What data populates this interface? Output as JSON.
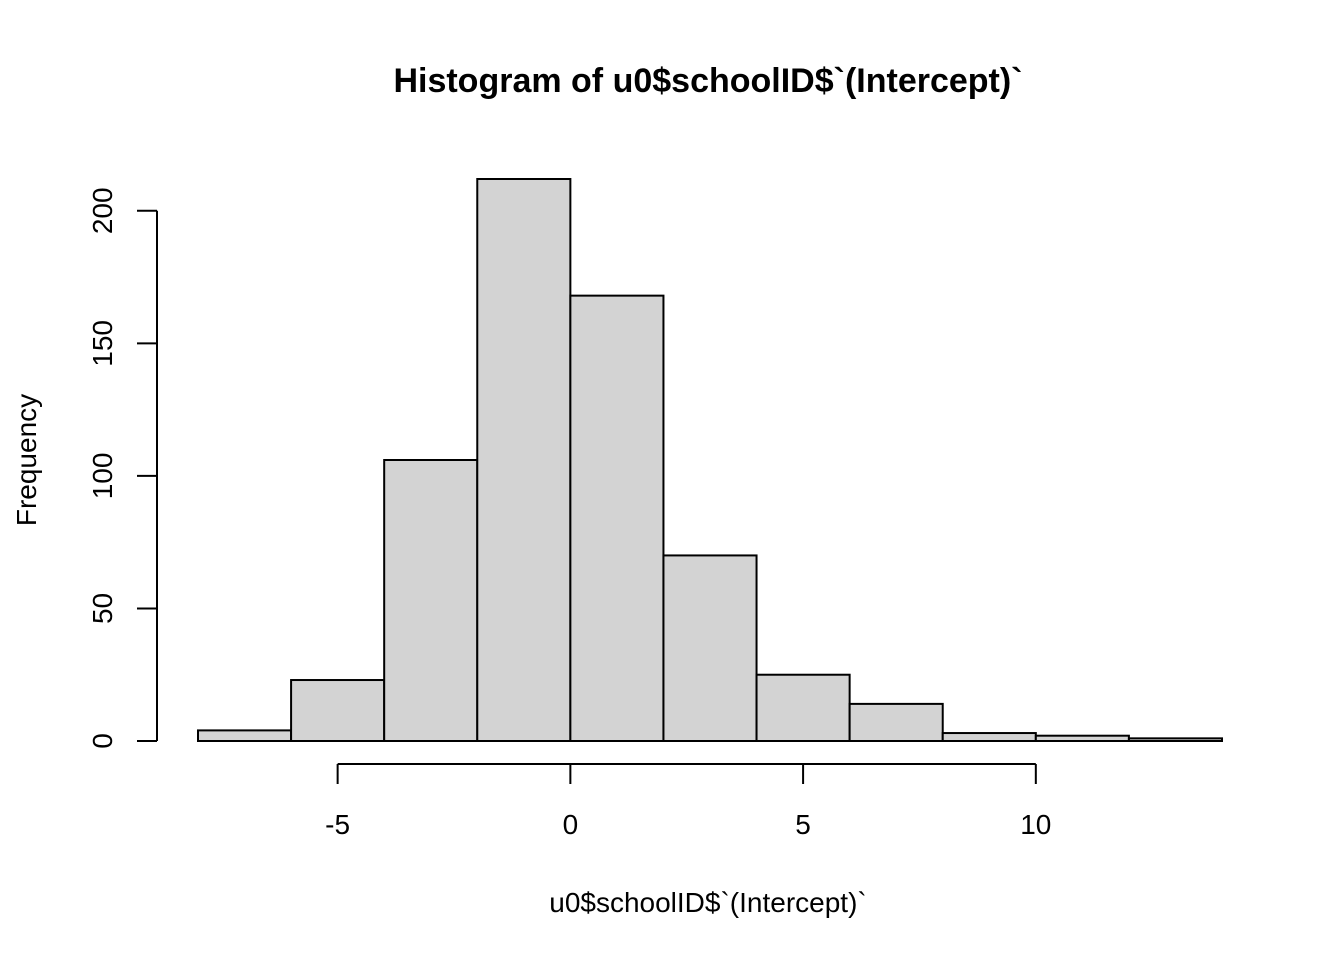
{
  "chart_data": {
    "type": "bar",
    "subtype": "histogram",
    "title": "Histogram of u0$schoolID$`(Intercept)`",
    "xlabel": "u0$schoolID$`(Intercept)`",
    "ylabel": "Frequency",
    "bins": [
      {
        "x0": -8,
        "x1": -6,
        "count": 4
      },
      {
        "x0": -6,
        "x1": -4,
        "count": 23
      },
      {
        "x0": -4,
        "x1": -2,
        "count": 106
      },
      {
        "x0": -2,
        "x1": 0,
        "count": 212
      },
      {
        "x0": 0,
        "x1": 2,
        "count": 168
      },
      {
        "x0": 2,
        "x1": 4,
        "count": 70
      },
      {
        "x0": 4,
        "x1": 6,
        "count": 25
      },
      {
        "x0": 6,
        "x1": 8,
        "count": 14
      },
      {
        "x0": 8,
        "x1": 10,
        "count": 3
      },
      {
        "x0": 10,
        "x1": 12,
        "count": 2
      },
      {
        "x0": 12,
        "x1": 14,
        "count": 1
      }
    ],
    "xlim": [
      -8,
      14
    ],
    "ylim": [
      0,
      212
    ],
    "x_ticks": [
      -5,
      0,
      5,
      10
    ],
    "x_tick_labels": [
      "-5",
      "0",
      "5",
      "10"
    ],
    "y_ticks": [
      0,
      50,
      100,
      150,
      200
    ],
    "y_tick_labels": [
      "0",
      "50",
      "100",
      "150",
      "200"
    ],
    "bar_color": "#d3d3d3",
    "grid": false,
    "legend": "none"
  }
}
